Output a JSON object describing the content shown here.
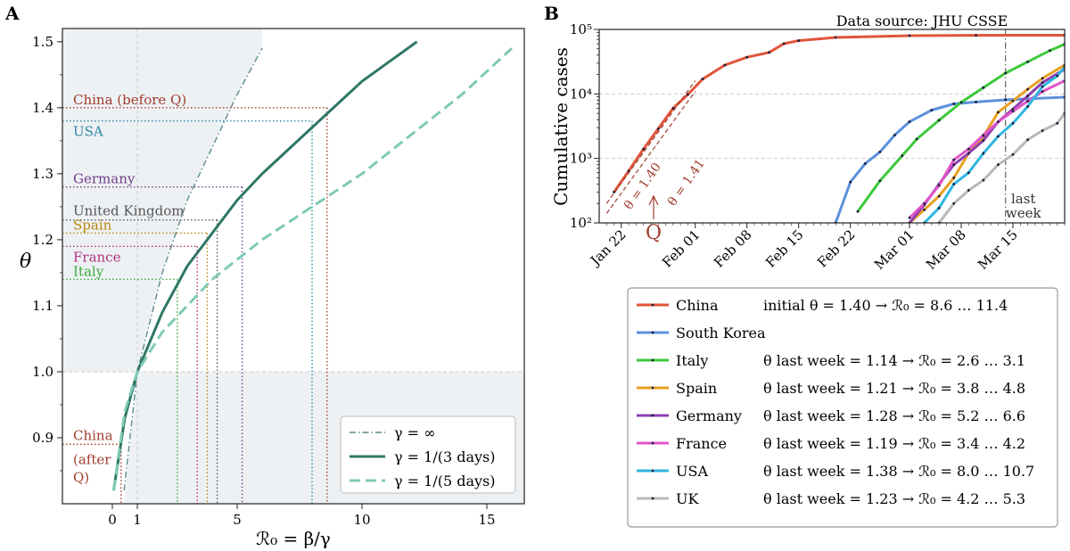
{
  "chart_data": [
    {
      "panel": "A",
      "type": "line",
      "xlabel": "ℛ₀ = β/γ",
      "ylabel": "θ",
      "xlim": [
        -2,
        16.5
      ],
      "ylim": [
        0.8,
        1.52
      ],
      "xticks": [
        0,
        1,
        5,
        10,
        15
      ],
      "yticks": [
        0.9,
        1.0,
        1.1,
        1.2,
        1.3,
        1.4,
        1.5
      ],
      "grid": false,
      "legend_position": "lower-right",
      "series": [
        {
          "name": "γ = ∞",
          "color": "#5b8c8c",
          "style": "dashdot",
          "x": [
            0.47,
            1,
            2,
            3,
            4,
            5,
            6
          ],
          "y": [
            0.82,
            1.0,
            1.15,
            1.26,
            1.34,
            1.42,
            1.49
          ]
        },
        {
          "name": "γ = 1/(3 days)",
          "color": "#2e7766",
          "style": "solid",
          "x": [
            0.05,
            0.5,
            1,
            2,
            3,
            4,
            5,
            6,
            8,
            10,
            12.2
          ],
          "y": [
            0.82,
            0.93,
            1.0,
            1.09,
            1.16,
            1.21,
            1.26,
            1.3,
            1.37,
            1.44,
            1.5
          ]
        },
        {
          "name": "γ = 1/(5 days)",
          "color": "#7fcab3",
          "style": "dashed",
          "x": [
            0.05,
            0.5,
            1,
            2,
            3,
            4,
            5,
            6,
            8,
            10,
            12,
            14,
            16
          ],
          "y": [
            0.82,
            0.94,
            1.0,
            1.06,
            1.1,
            1.14,
            1.17,
            1.2,
            1.25,
            1.3,
            1.36,
            1.42,
            1.49
          ]
        }
      ],
      "annotations": [
        {
          "label": "China (before Q)",
          "color": "#a13d2d",
          "theta": 1.4,
          "r0": 8.6
        },
        {
          "label": "USA",
          "color": "#2a86a6",
          "theta": 1.38,
          "r0": 8.0
        },
        {
          "label": "Germany",
          "color": "#6e3f88",
          "theta": 1.28,
          "r0": 5.2
        },
        {
          "label": "United Kingdom",
          "color": "#555555",
          "theta": 1.23,
          "r0": 4.2
        },
        {
          "label": "Spain",
          "color": "#b8860b",
          "theta": 1.21,
          "r0": 3.8
        },
        {
          "label": "France",
          "color": "#b0307d",
          "theta": 1.19,
          "r0": 3.4
        },
        {
          "label": "Italy",
          "color": "#3aab3a",
          "theta": 1.14,
          "r0": 2.6
        },
        {
          "label": "China (after Q)",
          "color": "#a13d2d",
          "theta": 0.89,
          "r0": 0.35
        }
      ]
    },
    {
      "panel": "B",
      "type": "line",
      "ylabel": "Cumulative cases",
      "yscale": "log",
      "ylim": [
        100,
        100000
      ],
      "xlim": [
        "2020-01-19",
        "2020-03-22"
      ],
      "xticks": [
        "Jan 22",
        "Feb 01",
        "Feb 08",
        "Feb 15",
        "Feb 22",
        "Mar 01",
        "Mar 08",
        "Mar 15"
      ],
      "source": "Data source: JHU CSSE",
      "last_week_start": "2020-03-14",
      "grid": true,
      "series": [
        {
          "name": "China",
          "color": "#e0543a",
          "x": [
            "2020-01-21",
            "2020-01-23",
            "2020-01-25",
            "2020-01-27",
            "2020-01-29",
            "2020-01-31",
            "2020-02-02",
            "2020-02-05",
            "2020-02-08",
            "2020-02-11",
            "2020-02-13",
            "2020-02-15",
            "2020-02-20",
            "2020-03-01",
            "2020-03-10",
            "2020-03-22"
          ],
          "y": [
            300,
            640,
            1400,
            2900,
            6000,
            9800,
            17000,
            28000,
            37000,
            44000,
            60000,
            67000,
            75000,
            80000,
            81000,
            81400
          ]
        },
        {
          "name": "South Korea",
          "color": "#5b91dc",
          "x": [
            "2020-02-20",
            "2020-02-22",
            "2020-02-24",
            "2020-02-26",
            "2020-02-28",
            "2020-03-01",
            "2020-03-04",
            "2020-03-07",
            "2020-03-10",
            "2020-03-14",
            "2020-03-22"
          ],
          "y": [
            100,
            430,
            830,
            1260,
            2300,
            3700,
            5600,
            7000,
            7500,
            8100,
            8900
          ]
        },
        {
          "name": "Italy",
          "color": "#3cc93c",
          "x": [
            "2020-02-23",
            "2020-02-26",
            "2020-02-29",
            "2020-03-02",
            "2020-03-05",
            "2020-03-08",
            "2020-03-11",
            "2020-03-14",
            "2020-03-17",
            "2020-03-20",
            "2020-03-22"
          ],
          "y": [
            150,
            450,
            1100,
            2000,
            3900,
            7400,
            12500,
            21000,
            31500,
            47000,
            59000
          ]
        },
        {
          "name": "Spain",
          "color": "#e8a020",
          "x": [
            "2020-03-01",
            "2020-03-03",
            "2020-03-05",
            "2020-03-07",
            "2020-03-09",
            "2020-03-11",
            "2020-03-13",
            "2020-03-15",
            "2020-03-17",
            "2020-03-19",
            "2020-03-22"
          ],
          "y": [
            100,
            160,
            260,
            500,
            1200,
            2200,
            5200,
            7800,
            11800,
            17400,
            28000
          ]
        },
        {
          "name": "Germany",
          "color": "#8e3fb0",
          "x": [
            "2020-03-01",
            "2020-03-03",
            "2020-03-05",
            "2020-03-07",
            "2020-03-09",
            "2020-03-11",
            "2020-03-13",
            "2020-03-15",
            "2020-03-17",
            "2020-03-19",
            "2020-03-22"
          ],
          "y": [
            100,
            190,
            400,
            800,
            1200,
            1900,
            3700,
            5800,
            9300,
            15000,
            24000
          ]
        },
        {
          "name": "France",
          "color": "#e055c8",
          "x": [
            "2020-03-01",
            "2020-03-03",
            "2020-03-05",
            "2020-03-07",
            "2020-03-09",
            "2020-03-11",
            "2020-03-13",
            "2020-03-15",
            "2020-03-17",
            "2020-03-19",
            "2020-03-22"
          ],
          "y": [
            120,
            200,
            380,
            950,
            1400,
            2300,
            3700,
            5400,
            7700,
            10900,
            16000
          ]
        },
        {
          "name": "USA",
          "color": "#2fb6e0",
          "x": [
            "2020-03-03",
            "2020-03-05",
            "2020-03-07",
            "2020-03-09",
            "2020-03-11",
            "2020-03-13",
            "2020-03-15",
            "2020-03-17",
            "2020-03-19",
            "2020-03-21",
            "2020-03-22"
          ],
          "y": [
            100,
            170,
            400,
            600,
            1200,
            2200,
            3500,
            6400,
            13000,
            19000,
            26000
          ]
        },
        {
          "name": "UK",
          "color": "#b8b8b8",
          "x": [
            "2020-03-05",
            "2020-03-07",
            "2020-03-09",
            "2020-03-11",
            "2020-03-13",
            "2020-03-15",
            "2020-03-17",
            "2020-03-19",
            "2020-03-21",
            "2020-03-22"
          ],
          "y": [
            100,
            200,
            320,
            460,
            800,
            1150,
            1950,
            2700,
            3500,
            5000
          ]
        }
      ],
      "fit_lines": [
        {
          "label": "θ = 1.40",
          "color": "#a13d2d"
        },
        {
          "label": "θ = 1.41",
          "color": "#a13d2d"
        }
      ],
      "quarantine_label": "Q",
      "last_week_label": [
        "last",
        "week"
      ]
    }
  ],
  "panel_a": {
    "letter": "A",
    "y_title": "θ",
    "x_title": "ℛ₀ = β/γ",
    "tick_labels": [
      "0",
      "1",
      "5",
      "10",
      "15",
      "0.9",
      "1.0",
      "1.1",
      "1.2",
      "1.3",
      "1.4",
      "1.5"
    ],
    "country_labels": [
      "China (before Q)",
      "USA",
      "Germany",
      "United Kingdom",
      "Spain",
      "France",
      "Italy",
      "China",
      "(after",
      "Q)"
    ],
    "legend": [
      "γ = ∞",
      "γ = 1/(3 days)",
      "γ = 1/(5 days)"
    ]
  },
  "panel_b": {
    "letter": "B",
    "source": "Data source: JHU CSSE",
    "y_title": "Cumulative cases",
    "tick_labels": [
      "10²",
      "10³",
      "10⁴",
      "10⁵",
      "Jan 22",
      "Feb 01",
      "Feb 08",
      "Feb 15",
      "Feb 22",
      "Mar 01",
      "Mar 08",
      "Mar 15"
    ],
    "last_week": [
      "last",
      "week"
    ],
    "fit_labels": [
      "θ = 1.40",
      "θ = 1.41"
    ],
    "q_label": "Q",
    "legend": [
      {
        "name": "China",
        "color": "#e0543a",
        "note": "initial θ = 1.40  →  ℛ₀ = 8.6 … 11.4"
      },
      {
        "name": "South Korea",
        "color": "#5b91dc",
        "note": ""
      },
      {
        "name": "Italy",
        "color": "#3cc93c",
        "note": "θ last week = 1.14  →  ℛ₀ = 2.6 … 3.1"
      },
      {
        "name": "Spain",
        "color": "#e8a020",
        "note": "θ last week = 1.21  →  ℛ₀ = 3.8 … 4.8"
      },
      {
        "name": "Germany",
        "color": "#8e3fb0",
        "note": "θ last week = 1.28  →  ℛ₀ = 5.2 … 6.6"
      },
      {
        "name": "France",
        "color": "#e055c8",
        "note": "θ last week = 1.19  →  ℛ₀ = 3.4 … 4.2"
      },
      {
        "name": "USA",
        "color": "#2fb6e0",
        "note": "θ last week = 1.38  →  ℛ₀ = 8.0 … 10.7"
      },
      {
        "name": "UK",
        "color": "#b8b8b8",
        "note": "θ last week = 1.23  →  ℛ₀ = 4.2 … 5.3"
      }
    ]
  }
}
